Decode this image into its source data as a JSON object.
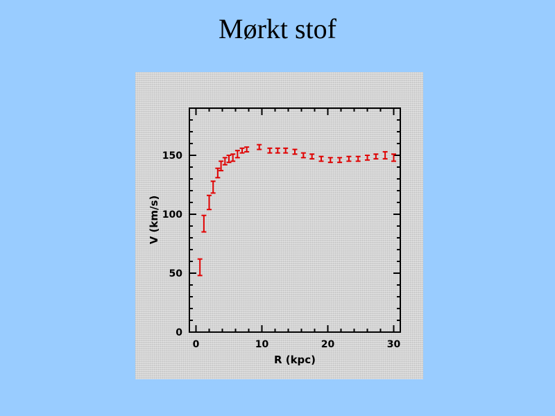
{
  "slide": {
    "title": "Mørkt stof"
  },
  "colors": {
    "background": "#99ccff",
    "figure_background": "#d3d3d3",
    "data": "#e00000"
  },
  "chart_data": {
    "type": "scatter",
    "title": "",
    "xlabel": "R (kpc)",
    "ylabel": "V (km/s)",
    "xlim": [
      -1,
      31
    ],
    "ylim": [
      0,
      190
    ],
    "xticks": [
      0,
      10,
      20,
      30
    ],
    "yticks": [
      0,
      50,
      100,
      150
    ],
    "xtick_labels": [
      "0",
      "10",
      "20",
      "30"
    ],
    "ytick_labels": [
      "0",
      "50",
      "100",
      "150"
    ],
    "grid": false,
    "error_bars": true,
    "series": [
      {
        "points": [
          {
            "x": 0.6,
            "y": 55,
            "err": 7
          },
          {
            "x": 1.2,
            "y": 92,
            "err": 7
          },
          {
            "x": 2.0,
            "y": 110,
            "err": 6
          },
          {
            "x": 2.6,
            "y": 123,
            "err": 5
          },
          {
            "x": 3.3,
            "y": 135,
            "err": 4
          },
          {
            "x": 3.8,
            "y": 141,
            "err": 4
          },
          {
            "x": 4.4,
            "y": 145,
            "err": 3
          },
          {
            "x": 5.0,
            "y": 147,
            "err": 3
          },
          {
            "x": 5.6,
            "y": 148,
            "err": 3
          },
          {
            "x": 6.3,
            "y": 151,
            "err": 3
          },
          {
            "x": 7.0,
            "y": 154,
            "err": 2
          },
          {
            "x": 7.7,
            "y": 155,
            "err": 2
          },
          {
            "x": 9.6,
            "y": 157,
            "err": 2
          },
          {
            "x": 11.2,
            "y": 154,
            "err": 2
          },
          {
            "x": 12.4,
            "y": 154,
            "err": 2
          },
          {
            "x": 13.6,
            "y": 154,
            "err": 2
          },
          {
            "x": 15.0,
            "y": 153,
            "err": 2
          },
          {
            "x": 16.3,
            "y": 150,
            "err": 2
          },
          {
            "x": 17.6,
            "y": 149,
            "err": 2
          },
          {
            "x": 19.0,
            "y": 147,
            "err": 2
          },
          {
            "x": 20.4,
            "y": 146,
            "err": 2
          },
          {
            "x": 21.8,
            "y": 146,
            "err": 2
          },
          {
            "x": 23.2,
            "y": 147,
            "err": 2
          },
          {
            "x": 24.6,
            "y": 147,
            "err": 2
          },
          {
            "x": 26.0,
            "y": 148,
            "err": 2
          },
          {
            "x": 27.3,
            "y": 149,
            "err": 2
          },
          {
            "x": 28.7,
            "y": 150,
            "err": 3
          },
          {
            "x": 30.0,
            "y": 148,
            "err": 3
          }
        ]
      }
    ]
  }
}
